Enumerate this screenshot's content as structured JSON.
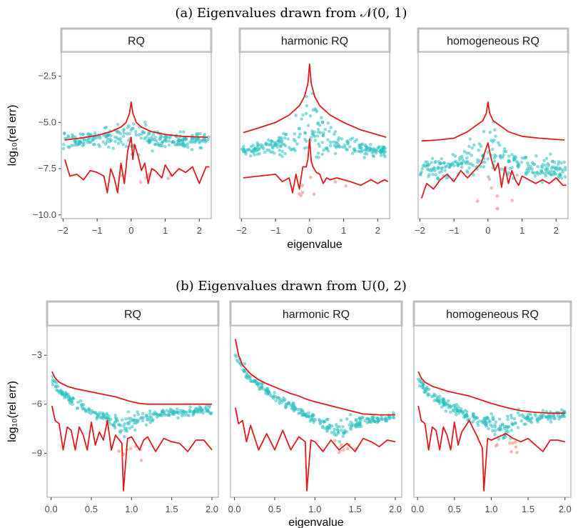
{
  "chart_data": [
    {
      "type": "scatter",
      "title": "(a) Eigenvalues drawn from 𝒩(0, 1)",
      "xlabel": "eigenvalue",
      "ylabel": "log₁₀(rel err)",
      "xlim": [
        -2.05,
        2.35
      ],
      "ylim": [
        -10.2,
        -1.2
      ],
      "xticks": [
        -2,
        -1,
        0,
        1,
        2
      ],
      "xtick_labels": [
        "−2",
        "−1",
        "0",
        "1",
        "2"
      ],
      "yticks": [
        -2.5,
        -5.0,
        -7.5,
        -10.0
      ],
      "ytick_labels": [
        "−2.5",
        "−5.0",
        "−7.5",
        "−10.0"
      ],
      "grid": false,
      "colors": {
        "points": "#2bbfbf",
        "outlier_points": "#f8a59a",
        "lines": "#e31a1c",
        "strip_border": "#bdbdbd",
        "panel_border": "#bdbdbd"
      },
      "panels": [
        {
          "name": "RQ",
          "upper_line": {
            "x": [
              -1.95,
              -1.5,
              -1.0,
              -0.6,
              -0.3,
              -0.15,
              -0.05,
              0.0,
              0.05,
              0.15,
              0.3,
              0.6,
              1.0,
              1.5,
              2.25
            ],
            "y": [
              -5.95,
              -5.85,
              -5.7,
              -5.5,
              -5.25,
              -5.0,
              -4.5,
              -3.9,
              -4.5,
              -5.0,
              -5.25,
              -5.5,
              -5.65,
              -5.75,
              -5.8
            ]
          },
          "lower_line": {
            "x": [
              -1.95,
              -1.8,
              -1.6,
              -1.4,
              -1.2,
              -1.0,
              -0.8,
              -0.7,
              -0.6,
              -0.5,
              -0.4,
              -0.3,
              -0.2,
              -0.1,
              0.0,
              0.05,
              0.1,
              0.2,
              0.3,
              0.4,
              0.5,
              0.6,
              0.7,
              0.8,
              0.9,
              1.0,
              1.2,
              1.4,
              1.6,
              1.8,
              2.0,
              2.2,
              2.3
            ],
            "y": [
              -7.0,
              -7.9,
              -7.8,
              -8.1,
              -7.6,
              -7.7,
              -7.9,
              -8.8,
              -7.5,
              -8.0,
              -8.8,
              -7.2,
              -8.3,
              -6.5,
              -5.8,
              -7.0,
              -6.2,
              -6.8,
              -7.6,
              -7.2,
              -8.3,
              -7.5,
              -7.6,
              -7.8,
              -8.0,
              -7.3,
              -7.9,
              -7.5,
              -7.7,
              -7.4,
              -8.3,
              -7.4,
              -7.4
            ]
          },
          "scatter_spec": {
            "center": -6.1,
            "edge_center": -6.0,
            "peak_boost": 1.4,
            "spread": 0.35,
            "outlier_max": -8.3
          }
        },
        {
          "name": "harmonic RQ",
          "upper_line": {
            "x": [
              -1.95,
              -1.5,
              -1.0,
              -0.6,
              -0.3,
              -0.15,
              -0.05,
              0.0,
              0.05,
              0.15,
              0.3,
              0.6,
              1.0,
              1.5,
              2.25
            ],
            "y": [
              -5.55,
              -5.3,
              -5.0,
              -4.6,
              -4.1,
              -3.6,
              -2.9,
              -1.85,
              -2.9,
              -3.6,
              -4.1,
              -4.6,
              -5.0,
              -5.4,
              -5.8
            ]
          },
          "lower_line": {
            "x": [
              -1.95,
              -1.5,
              -1.0,
              -0.8,
              -0.6,
              -0.5,
              -0.4,
              -0.3,
              -0.2,
              -0.1,
              -0.05,
              0.0,
              0.05,
              0.1,
              0.2,
              0.3,
              0.4,
              0.5,
              0.6,
              0.8,
              1.0,
              1.2,
              1.5,
              1.8,
              2.0,
              2.2,
              2.3
            ],
            "y": [
              -8.0,
              -7.9,
              -7.8,
              -8.2,
              -8.0,
              -8.8,
              -7.8,
              -8.6,
              -7.4,
              -7.4,
              -7.0,
              -5.9,
              -7.1,
              -7.4,
              -7.7,
              -7.8,
              -8.3,
              -8.0,
              -8.1,
              -8.0,
              -8.1,
              -8.2,
              -8.4,
              -8.1,
              -8.3,
              -8.1,
              -8.2
            ]
          },
          "scatter_spec": {
            "center": -6.5,
            "edge_center": -6.6,
            "peak_boost": 3.3,
            "spread": 0.3,
            "outlier_max": -9.0
          }
        },
        {
          "name": "homogeneous RQ",
          "upper_line": {
            "x": [
              -1.95,
              -1.5,
              -1.0,
              -0.6,
              -0.3,
              -0.15,
              -0.05,
              0.0,
              0.05,
              0.15,
              0.3,
              0.6,
              1.0,
              1.5,
              2.25
            ],
            "y": [
              -6.0,
              -5.95,
              -5.85,
              -5.5,
              -5.1,
              -4.9,
              -4.5,
              -3.9,
              -4.5,
              -4.9,
              -5.1,
              -5.5,
              -5.75,
              -5.85,
              -5.95
            ]
          },
          "lower_line": {
            "x": [
              -1.95,
              -1.8,
              -1.6,
              -1.4,
              -1.2,
              -1.0,
              -0.8,
              -0.6,
              -0.4,
              -0.2,
              0.0,
              0.1,
              0.2,
              0.3,
              0.4,
              0.5,
              0.6,
              0.7,
              0.8,
              0.9,
              1.0,
              1.2,
              1.4,
              1.6,
              1.8,
              2.0,
              2.2,
              2.3
            ],
            "y": [
              -9.1,
              -8.3,
              -8.6,
              -8.1,
              -7.8,
              -8.2,
              -7.6,
              -8.0,
              -7.6,
              -7.2,
              -6.1,
              -7.0,
              -7.6,
              -7.2,
              -8.5,
              -7.4,
              -8.3,
              -7.6,
              -8.1,
              -8.4,
              -7.9,
              -8.1,
              -8.3,
              -8.1,
              -8.3,
              -8.0,
              -8.4,
              -8.4
            ]
          },
          "scatter_spec": {
            "center": -7.2,
            "edge_center": -7.6,
            "peak_boost": 1.9,
            "spread": 0.55,
            "outlier_max": -9.8
          }
        }
      ]
    },
    {
      "type": "scatter",
      "title": "(b) Eigenvalues drawn from U(0, 2)",
      "xlabel": "eigenvalue",
      "ylabel": "log₁₀(rel err)",
      "xlim": [
        -0.05,
        2.08
      ],
      "ylim": [
        -11.7,
        -1.2
      ],
      "xticks": [
        0.0,
        0.5,
        1.0,
        1.5,
        2.0
      ],
      "xtick_labels": [
        "0.0",
        "0.5",
        "1.0",
        "1.5",
        "2.0"
      ],
      "yticks": [
        -3,
        -6,
        -9
      ],
      "ytick_labels": [
        "−3",
        "−6",
        "−9"
      ],
      "grid": false,
      "colors": {
        "points": "#2bbfbf",
        "outlier_points": "#f8a59a",
        "lines": "#e31a1c",
        "strip_border": "#bdbdbd",
        "panel_border": "#bdbdbd"
      },
      "panels": [
        {
          "name": "RQ",
          "upper_line": {
            "x": [
              0.01,
              0.05,
              0.1,
              0.2,
              0.3,
              0.4,
              0.5,
              0.6,
              0.7,
              0.8,
              0.9,
              1.0,
              1.1,
              1.2,
              1.4,
              1.6,
              1.8,
              2.0
            ],
            "y": [
              -4.0,
              -4.4,
              -4.65,
              -4.9,
              -5.05,
              -5.15,
              -5.25,
              -5.35,
              -5.45,
              -5.55,
              -5.7,
              -5.85,
              -5.95,
              -6.0,
              -6.0,
              -6.0,
              -6.0,
              -6.0
            ]
          },
          "lower_line": {
            "x": [
              0.01,
              0.05,
              0.1,
              0.15,
              0.2,
              0.25,
              0.3,
              0.35,
              0.4,
              0.45,
              0.5,
              0.55,
              0.6,
              0.65,
              0.7,
              0.75,
              0.8,
              0.85,
              0.88,
              0.9,
              0.95,
              1.0,
              1.05,
              1.1,
              1.15,
              1.2,
              1.3,
              1.4,
              1.5,
              1.6,
              1.7,
              1.8,
              1.9,
              2.0
            ],
            "y": [
              -6.1,
              -7.0,
              -7.2,
              -8.8,
              -7.4,
              -7.6,
              -8.8,
              -7.4,
              -7.9,
              -8.8,
              -7.1,
              -8.5,
              -7.7,
              -8.2,
              -7.0,
              -8.8,
              -7.9,
              -8.2,
              -8.4,
              -11.3,
              -8.1,
              -8.0,
              -8.4,
              -8.8,
              -8.2,
              -8.0,
              -8.9,
              -8.1,
              -8.3,
              -8.4,
              -8.9,
              -8.2,
              -8.2,
              -8.8
            ]
          },
          "scatter_spec": {
            "start": -4.2,
            "dip_x": 0.95,
            "dip_y": -7.4,
            "end": -6.3,
            "spread": 0.25,
            "outlier_max": -10.6
          }
        },
        {
          "name": "harmonic RQ",
          "upper_line": {
            "x": [
              0.01,
              0.05,
              0.1,
              0.2,
              0.3,
              0.4,
              0.5,
              0.6,
              0.7,
              0.8,
              0.9,
              1.0,
              1.2,
              1.4,
              1.6,
              1.8,
              2.0
            ],
            "y": [
              -2.0,
              -3.0,
              -3.6,
              -4.15,
              -4.5,
              -4.75,
              -4.95,
              -5.15,
              -5.35,
              -5.5,
              -5.7,
              -5.85,
              -6.1,
              -6.35,
              -6.6,
              -6.65,
              -6.65
            ]
          },
          "lower_line": {
            "x": [
              0.01,
              0.05,
              0.1,
              0.15,
              0.2,
              0.3,
              0.4,
              0.5,
              0.6,
              0.7,
              0.8,
              0.88,
              0.9,
              0.95,
              1.0,
              1.1,
              1.2,
              1.3,
              1.4,
              1.5,
              1.6,
              1.7,
              1.8,
              1.9,
              2.0
            ],
            "y": [
              -6.2,
              -7.2,
              -7.0,
              -8.3,
              -7.3,
              -8.8,
              -7.8,
              -8.8,
              -7.6,
              -8.8,
              -8.0,
              -8.3,
              -11.3,
              -8.2,
              -8.3,
              -8.9,
              -8.2,
              -8.8,
              -8.4,
              -8.9,
              -8.1,
              -8.3,
              -8.6,
              -8.2,
              -8.3
            ]
          },
          "scatter_spec": {
            "start": -2.5,
            "dip_x": 1.35,
            "dip_y": -7.7,
            "end": -6.8,
            "spread": 0.25,
            "outlier_max": -9.0
          }
        },
        {
          "name": "homogeneous RQ",
          "upper_line": {
            "x": [
              0.01,
              0.05,
              0.1,
              0.2,
              0.3,
              0.4,
              0.5,
              0.6,
              0.7,
              0.8,
              0.9,
              1.0,
              1.2,
              1.4,
              1.6,
              1.8,
              2.0
            ],
            "y": [
              -4.0,
              -4.4,
              -4.65,
              -4.9,
              -5.05,
              -5.2,
              -5.3,
              -5.4,
              -5.5,
              -5.65,
              -5.8,
              -5.95,
              -6.2,
              -6.4,
              -6.5,
              -6.55,
              -6.55
            ]
          },
          "lower_line": {
            "x": [
              0.01,
              0.05,
              0.1,
              0.15,
              0.2,
              0.25,
              0.3,
              0.35,
              0.4,
              0.45,
              0.5,
              0.55,
              0.6,
              0.7,
              0.8,
              0.85,
              0.88,
              0.9,
              0.95,
              1.0,
              1.1,
              1.2,
              1.3,
              1.4,
              1.5,
              1.6,
              1.7,
              1.8,
              1.9,
              2.0
            ],
            "y": [
              -6.1,
              -7.0,
              -7.2,
              -8.8,
              -7.4,
              -7.6,
              -8.8,
              -7.4,
              -7.9,
              -8.8,
              -7.1,
              -8.5,
              -7.7,
              -7.0,
              -7.9,
              -8.4,
              -8.7,
              -11.3,
              -8.1,
              -8.2,
              -8.0,
              -7.8,
              -8.1,
              -8.3,
              -8.1,
              -8.5,
              -8.9,
              -8.2,
              -8.2,
              -8.3
            ]
          },
          "scatter_spec": {
            "start": -4.2,
            "dip_x": 1.2,
            "dip_y": -7.6,
            "end": -6.6,
            "spread": 0.3,
            "outlier_max": -9.0
          }
        }
      ]
    }
  ]
}
